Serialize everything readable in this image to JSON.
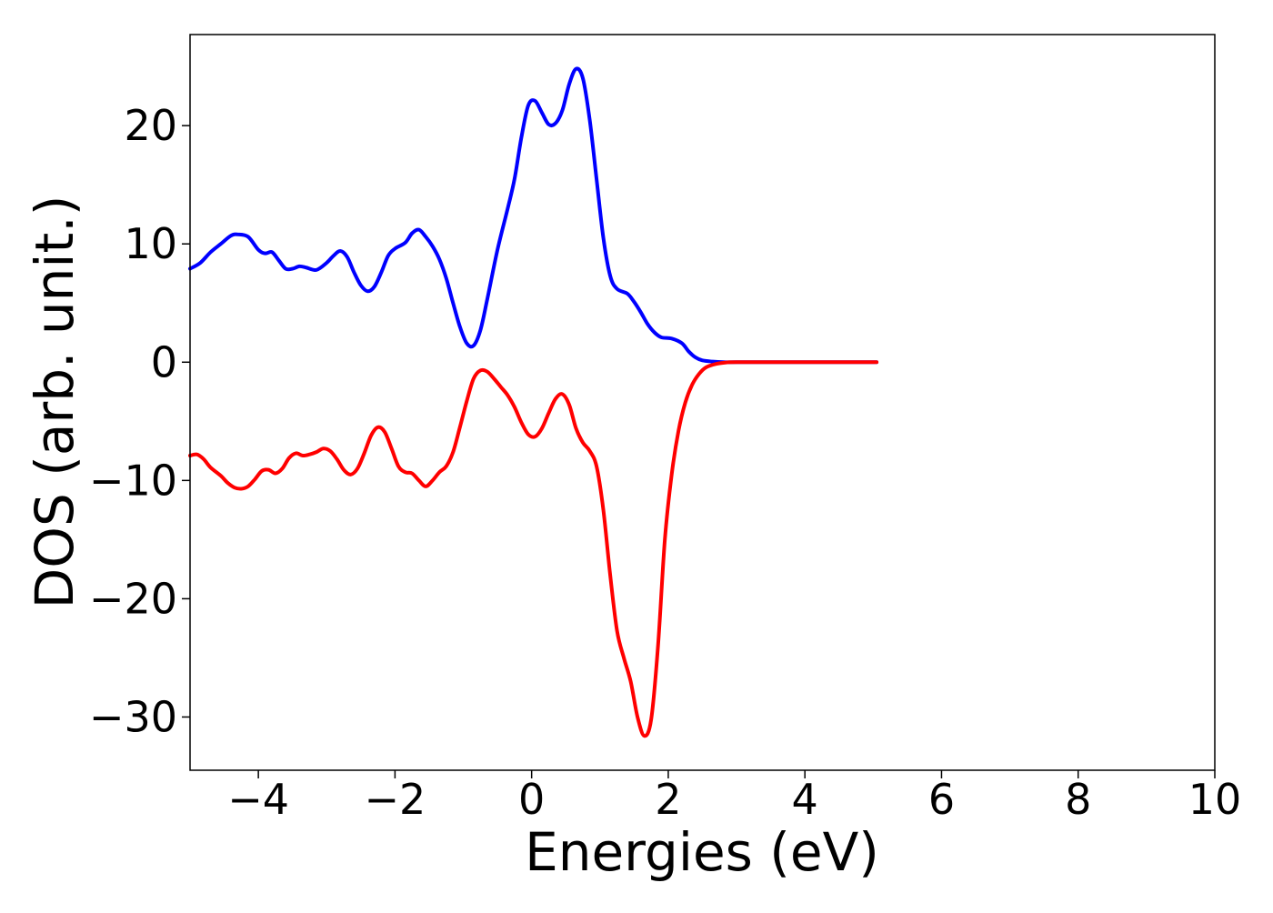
{
  "chart_data": {
    "type": "line",
    "title": "",
    "xlabel": "Energies (eV)",
    "ylabel": "DOS (arb. unit.)",
    "xlim": [
      -5,
      10
    ],
    "ylim": [
      -34.5,
      27.7
    ],
    "grid": false,
    "x_ticks": [
      -4,
      -2,
      0,
      2,
      4,
      6,
      8,
      10
    ],
    "x_tick_labels": [
      "−4",
      "−2",
      "0",
      "2",
      "4",
      "6",
      "8",
      "10"
    ],
    "y_ticks": [
      20,
      10,
      0,
      -10,
      -20,
      -30
    ],
    "y_tick_labels": [
      "20",
      "10",
      "0",
      "−10",
      "−20",
      "−30"
    ],
    "series": [
      {
        "color": "#0000ff",
        "points": [
          [
            -5.0,
            7.9
          ],
          [
            -4.85,
            8.4
          ],
          [
            -4.7,
            9.3
          ],
          [
            -4.55,
            10.0
          ],
          [
            -4.4,
            10.7
          ],
          [
            -4.3,
            10.8
          ],
          [
            -4.15,
            10.6
          ],
          [
            -4.0,
            9.5
          ],
          [
            -3.9,
            9.2
          ],
          [
            -3.8,
            9.3
          ],
          [
            -3.7,
            8.6
          ],
          [
            -3.6,
            7.9
          ],
          [
            -3.5,
            7.9
          ],
          [
            -3.4,
            8.1
          ],
          [
            -3.3,
            8.0
          ],
          [
            -3.15,
            7.8
          ],
          [
            -3.0,
            8.4
          ],
          [
            -2.9,
            9.0
          ],
          [
            -2.8,
            9.4
          ],
          [
            -2.7,
            8.9
          ],
          [
            -2.6,
            7.6
          ],
          [
            -2.5,
            6.5
          ],
          [
            -2.4,
            6.0
          ],
          [
            -2.3,
            6.4
          ],
          [
            -2.2,
            7.6
          ],
          [
            -2.1,
            9.0
          ],
          [
            -2.0,
            9.6
          ],
          [
            -1.85,
            10.1
          ],
          [
            -1.75,
            10.9
          ],
          [
            -1.65,
            11.2
          ],
          [
            -1.55,
            10.6
          ],
          [
            -1.45,
            9.8
          ],
          [
            -1.35,
            8.7
          ],
          [
            -1.25,
            7.1
          ],
          [
            -1.15,
            5.0
          ],
          [
            -1.05,
            3.0
          ],
          [
            -0.95,
            1.6
          ],
          [
            -0.85,
            1.4
          ],
          [
            -0.75,
            2.7
          ],
          [
            -0.65,
            5.3
          ],
          [
            -0.5,
            9.5
          ],
          [
            -0.35,
            13.0
          ],
          [
            -0.25,
            15.5
          ],
          [
            -0.15,
            19.0
          ],
          [
            -0.05,
            21.7
          ],
          [
            0.05,
            22.1
          ],
          [
            0.15,
            21.1
          ],
          [
            0.25,
            20.1
          ],
          [
            0.35,
            20.2
          ],
          [
            0.45,
            21.3
          ],
          [
            0.55,
            23.5
          ],
          [
            0.65,
            24.8
          ],
          [
            0.75,
            24.0
          ],
          [
            0.85,
            20.5
          ],
          [
            0.95,
            15.5
          ],
          [
            1.05,
            10.5
          ],
          [
            1.15,
            7.3
          ],
          [
            1.25,
            6.2
          ],
          [
            1.4,
            5.8
          ],
          [
            1.5,
            5.1
          ],
          [
            1.6,
            4.2
          ],
          [
            1.7,
            3.2
          ],
          [
            1.8,
            2.5
          ],
          [
            1.9,
            2.1
          ],
          [
            2.05,
            2.0
          ],
          [
            2.2,
            1.6
          ],
          [
            2.3,
            0.9
          ],
          [
            2.4,
            0.4
          ],
          [
            2.5,
            0.15
          ],
          [
            2.65,
            0.05
          ],
          [
            2.8,
            0.0
          ],
          [
            3.0,
            0.0
          ],
          [
            4.0,
            0.0
          ],
          [
            5.05,
            0.0
          ]
        ]
      },
      {
        "color": "#ff0000",
        "points": [
          [
            -5.0,
            -7.9
          ],
          [
            -4.9,
            -7.8
          ],
          [
            -4.8,
            -8.2
          ],
          [
            -4.7,
            -8.9
          ],
          [
            -4.55,
            -9.6
          ],
          [
            -4.45,
            -10.2
          ],
          [
            -4.35,
            -10.6
          ],
          [
            -4.25,
            -10.7
          ],
          [
            -4.15,
            -10.5
          ],
          [
            -4.05,
            -9.9
          ],
          [
            -3.95,
            -9.2
          ],
          [
            -3.85,
            -9.1
          ],
          [
            -3.75,
            -9.4
          ],
          [
            -3.65,
            -9.0
          ],
          [
            -3.55,
            -8.1
          ],
          [
            -3.45,
            -7.7
          ],
          [
            -3.35,
            -7.9
          ],
          [
            -3.25,
            -7.8
          ],
          [
            -3.15,
            -7.6
          ],
          [
            -3.05,
            -7.3
          ],
          [
            -2.95,
            -7.5
          ],
          [
            -2.85,
            -8.2
          ],
          [
            -2.75,
            -9.1
          ],
          [
            -2.65,
            -9.5
          ],
          [
            -2.55,
            -9.0
          ],
          [
            -2.45,
            -7.7
          ],
          [
            -2.35,
            -6.2
          ],
          [
            -2.25,
            -5.5
          ],
          [
            -2.15,
            -5.9
          ],
          [
            -2.05,
            -7.3
          ],
          [
            -1.95,
            -8.8
          ],
          [
            -1.85,
            -9.3
          ],
          [
            -1.75,
            -9.4
          ],
          [
            -1.65,
            -10.0
          ],
          [
            -1.55,
            -10.5
          ],
          [
            -1.45,
            -10.0
          ],
          [
            -1.35,
            -9.3
          ],
          [
            -1.25,
            -8.8
          ],
          [
            -1.15,
            -7.6
          ],
          [
            -1.05,
            -5.5
          ],
          [
            -0.95,
            -3.3
          ],
          [
            -0.85,
            -1.4
          ],
          [
            -0.75,
            -0.7
          ],
          [
            -0.65,
            -0.8
          ],
          [
            -0.55,
            -1.4
          ],
          [
            -0.45,
            -2.1
          ],
          [
            -0.35,
            -2.8
          ],
          [
            -0.25,
            -3.8
          ],
          [
            -0.15,
            -5.1
          ],
          [
            -0.05,
            -6.1
          ],
          [
            0.05,
            -6.3
          ],
          [
            0.15,
            -5.6
          ],
          [
            0.25,
            -4.3
          ],
          [
            0.35,
            -3.1
          ],
          [
            0.45,
            -2.7
          ],
          [
            0.55,
            -3.6
          ],
          [
            0.65,
            -5.6
          ],
          [
            0.75,
            -6.8
          ],
          [
            0.85,
            -7.5
          ],
          [
            0.95,
            -8.8
          ],
          [
            1.05,
            -12.5
          ],
          [
            1.15,
            -18.0
          ],
          [
            1.25,
            -22.7
          ],
          [
            1.35,
            -25.0
          ],
          [
            1.45,
            -27.0
          ],
          [
            1.55,
            -30.0
          ],
          [
            1.65,
            -31.6
          ],
          [
            1.75,
            -30.2
          ],
          [
            1.85,
            -24.0
          ],
          [
            1.95,
            -15.0
          ],
          [
            2.05,
            -9.5
          ],
          [
            2.15,
            -5.8
          ],
          [
            2.25,
            -3.4
          ],
          [
            2.35,
            -1.9
          ],
          [
            2.45,
            -1.0
          ],
          [
            2.55,
            -0.45
          ],
          [
            2.7,
            -0.15
          ],
          [
            2.85,
            -0.03
          ],
          [
            3.0,
            0.0
          ],
          [
            4.0,
            0.0
          ],
          [
            5.05,
            0.0
          ]
        ]
      }
    ]
  }
}
